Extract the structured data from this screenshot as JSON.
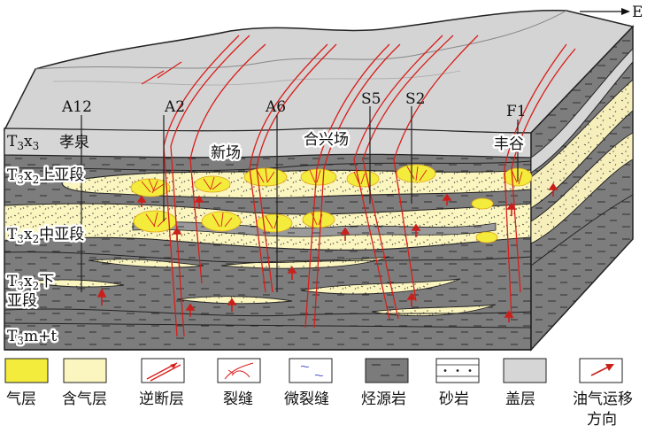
{
  "compass": "E",
  "wells": [
    "A12",
    "A2",
    "A6",
    "S5",
    "S2",
    "F1"
  ],
  "fields": [
    "孝泉",
    "新场",
    "合兴场",
    "丰谷"
  ],
  "strata": {
    "t3x3": {
      "base": "T",
      "sub1": "3",
      "mid": "x",
      "sub2": "3"
    },
    "t3x2_upper": {
      "base": "T",
      "sub1": "3",
      "mid": "x",
      "sub2": "2",
      "suffix": "上亚段"
    },
    "t3x2_middle": {
      "base": "T",
      "sub1": "3",
      "mid": "x",
      "sub2": "2",
      "suffix": "中亚段"
    },
    "t3x2_lower": {
      "base": "T",
      "sub1": "3",
      "mid": "x",
      "sub2": "2",
      "suffix": "下",
      "line2": "亚段"
    },
    "t3mt": {
      "base": "T",
      "sub1": "3",
      "mid": "m+t"
    }
  },
  "legend": [
    {
      "key": "gas",
      "label": "气层",
      "color": "#f3ec3c"
    },
    {
      "key": "gas_bearing",
      "label": "含气层",
      "color": "#fbf5bf"
    },
    {
      "key": "reverse_fault",
      "label": "逆断层",
      "color": "#e8211c"
    },
    {
      "key": "fracture",
      "label": "裂缝",
      "color": "#e8211c"
    },
    {
      "key": "microfracture",
      "label": "微裂缝",
      "color": "#4a52c8"
    },
    {
      "key": "source_rock",
      "label": "烃源岩",
      "color": "#7b7b7b"
    },
    {
      "key": "sandstone",
      "label": "砂岩",
      "color": "#ffffff"
    },
    {
      "key": "caprock",
      "label": "盖层",
      "color": "#d6d6d6"
    },
    {
      "key": "migration",
      "label": "油气运移",
      "label2": "方向",
      "color": "#c9201c"
    }
  ]
}
